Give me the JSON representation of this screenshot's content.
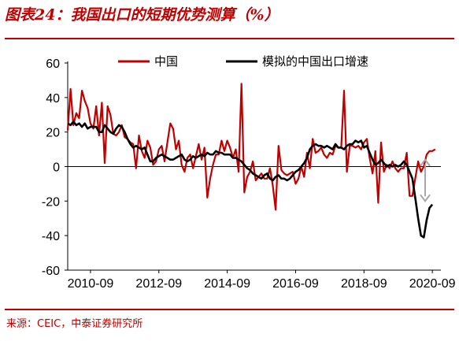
{
  "header": {
    "title": "图表24：我国出口的短期优势测算（%）"
  },
  "footer": {
    "source": "来源：CEIC，中泰证券研究所"
  },
  "colors": {
    "brand": "#c00000",
    "china": "#c00000",
    "model": "#000000",
    "arrow": "#a6a6a6"
  },
  "chart_data": {
    "type": "line",
    "title": "",
    "xlabel": "",
    "ylabel": "",
    "ylim": [
      -60,
      60
    ],
    "yticks": [
      -60,
      -40,
      -20,
      0,
      20,
      40,
      60
    ],
    "xlim": [
      "2010-01",
      "2020-12"
    ],
    "xticks": [
      "2010-09",
      "2012-09",
      "2014-09",
      "2016-09",
      "2018-09",
      "2020-09"
    ],
    "legend": {
      "placement": "top",
      "entries": [
        "中国",
        "模拟的中国出口增速"
      ]
    },
    "annotation": "double-headed arrow at right, spanning the zero line to about -20",
    "series": [
      {
        "name": "中国",
        "color": "#c00000",
        "points": [
          [
            "2010-01",
            21
          ],
          [
            "2010-02",
            45
          ],
          [
            "2010-03",
            24
          ],
          [
            "2010-04",
            31
          ],
          [
            "2010-05",
            28
          ],
          [
            "2010-06",
            44
          ],
          [
            "2010-07",
            38
          ],
          [
            "2010-08",
            34
          ],
          [
            "2010-09",
            25
          ],
          [
            "2010-10",
            22
          ],
          [
            "2010-11",
            35
          ],
          [
            "2010-12",
            18
          ],
          [
            "2011-01",
            37
          ],
          [
            "2011-02",
            2
          ],
          [
            "2011-03",
            35
          ],
          [
            "2011-04",
            30
          ],
          [
            "2011-05",
            19
          ],
          [
            "2011-06",
            18
          ],
          [
            "2011-07",
            20
          ],
          [
            "2011-08",
            24
          ],
          [
            "2011-09",
            17
          ],
          [
            "2011-10",
            16
          ],
          [
            "2011-11",
            14
          ],
          [
            "2011-12",
            13
          ],
          [
            "2012-01",
            -1
          ],
          [
            "2012-02",
            18
          ],
          [
            "2012-03",
            9
          ],
          [
            "2012-04",
            5
          ],
          [
            "2012-05",
            15
          ],
          [
            "2012-06",
            11
          ],
          [
            "2012-07",
            1
          ],
          [
            "2012-08",
            3
          ],
          [
            "2012-09",
            10
          ],
          [
            "2012-10",
            12
          ],
          [
            "2012-11",
            3
          ],
          [
            "2012-12",
            14
          ],
          [
            "2013-01",
            25
          ],
          [
            "2013-02",
            22
          ],
          [
            "2013-03",
            10
          ],
          [
            "2013-04",
            15
          ],
          [
            "2013-05",
            1
          ],
          [
            "2013-06",
            -3
          ],
          [
            "2013-07",
            5
          ],
          [
            "2013-08",
            7
          ],
          [
            "2013-09",
            -1
          ],
          [
            "2013-10",
            6
          ],
          [
            "2013-11",
            13
          ],
          [
            "2013-12",
            4
          ],
          [
            "2014-01",
            11
          ],
          [
            "2014-02",
            -18
          ],
          [
            "2014-03",
            -7
          ],
          [
            "2014-04",
            1
          ],
          [
            "2014-05",
            7
          ],
          [
            "2014-06",
            7
          ],
          [
            "2014-07",
            15
          ],
          [
            "2014-08",
            9
          ],
          [
            "2014-09",
            15
          ],
          [
            "2014-10",
            11
          ],
          [
            "2014-11",
            5
          ],
          [
            "2014-12",
            10
          ],
          [
            "2015-01",
            -3
          ],
          [
            "2015-02",
            48
          ],
          [
            "2015-03",
            -15
          ],
          [
            "2015-04",
            -6
          ],
          [
            "2015-05",
            -3
          ],
          [
            "2015-06",
            3
          ],
          [
            "2015-07",
            -8
          ],
          [
            "2015-08",
            -6
          ],
          [
            "2015-09",
            -4
          ],
          [
            "2015-10",
            -7
          ],
          [
            "2015-11",
            -7
          ],
          [
            "2015-12",
            -1
          ],
          [
            "2016-01",
            -11
          ],
          [
            "2016-02",
            -25
          ],
          [
            "2016-03",
            12
          ],
          [
            "2016-04",
            -2
          ],
          [
            "2016-05",
            -4
          ],
          [
            "2016-06",
            -5
          ],
          [
            "2016-07",
            -4
          ],
          [
            "2016-08",
            -3
          ],
          [
            "2016-09",
            -10
          ],
          [
            "2016-10",
            -7
          ],
          [
            "2016-11",
            0
          ],
          [
            "2016-12",
            -6
          ],
          [
            "2017-01",
            8
          ],
          [
            "2017-02",
            -1
          ],
          [
            "2017-03",
            16
          ],
          [
            "2017-04",
            8
          ],
          [
            "2017-05",
            9
          ],
          [
            "2017-06",
            11
          ],
          [
            "2017-07",
            7
          ],
          [
            "2017-08",
            5
          ],
          [
            "2017-09",
            8
          ],
          [
            "2017-10",
            7
          ],
          [
            "2017-11",
            12
          ],
          [
            "2017-12",
            11
          ],
          [
            "2018-01",
            11
          ],
          [
            "2018-02",
            44
          ],
          [
            "2018-03",
            -3
          ],
          [
            "2018-04",
            12
          ],
          [
            "2018-05",
            12
          ],
          [
            "2018-06",
            11
          ],
          [
            "2018-07",
            12
          ],
          [
            "2018-08",
            10
          ],
          [
            "2018-09",
            14
          ],
          [
            "2018-10",
            16
          ],
          [
            "2018-11",
            5
          ],
          [
            "2018-12",
            -4
          ],
          [
            "2019-01",
            9
          ],
          [
            "2019-02",
            -21
          ],
          [
            "2019-03",
            14
          ],
          [
            "2019-04",
            -3
          ],
          [
            "2019-05",
            1
          ],
          [
            "2019-06",
            -1
          ],
          [
            "2019-07",
            3
          ],
          [
            "2019-08",
            -1
          ],
          [
            "2019-09",
            -3
          ],
          [
            "2019-10",
            -1
          ],
          [
            "2019-11",
            -1
          ],
          [
            "2019-12",
            8
          ],
          [
            "2020-01",
            -17
          ],
          [
            "2020-02",
            -17
          ],
          [
            "2020-03",
            -7
          ],
          [
            "2020-04",
            3
          ],
          [
            "2020-05",
            -3
          ],
          [
            "2020-06",
            0
          ],
          [
            "2020-07",
            7
          ],
          [
            "2020-08",
            9
          ],
          [
            "2020-09",
            9
          ],
          [
            "2020-10",
            10
          ]
        ]
      },
      {
        "name": "模拟的中国出口增速",
        "color": "#000000",
        "points": [
          [
            "2010-01",
            25
          ],
          [
            "2010-02",
            24
          ],
          [
            "2010-03",
            26
          ],
          [
            "2010-04",
            24
          ],
          [
            "2010-05",
            25
          ],
          [
            "2010-06",
            23
          ],
          [
            "2010-07",
            25
          ],
          [
            "2010-08",
            22
          ],
          [
            "2010-09",
            23
          ],
          [
            "2010-10",
            23
          ],
          [
            "2010-11",
            23
          ],
          [
            "2010-12",
            20
          ],
          [
            "2011-01",
            20
          ],
          [
            "2011-02",
            24
          ],
          [
            "2011-03",
            22
          ],
          [
            "2011-04",
            20
          ],
          [
            "2011-05",
            19
          ],
          [
            "2011-06",
            22
          ],
          [
            "2011-07",
            24
          ],
          [
            "2011-08",
            23
          ],
          [
            "2011-09",
            20
          ],
          [
            "2011-10",
            16
          ],
          [
            "2011-11",
            13
          ],
          [
            "2011-12",
            11
          ],
          [
            "2012-01",
            12
          ],
          [
            "2012-02",
            11
          ],
          [
            "2012-03",
            10
          ],
          [
            "2012-04",
            11
          ],
          [
            "2012-05",
            7
          ],
          [
            "2012-06",
            3
          ],
          [
            "2012-07",
            3
          ],
          [
            "2012-08",
            5
          ],
          [
            "2012-09",
            6
          ],
          [
            "2012-10",
            7
          ],
          [
            "2012-11",
            6
          ],
          [
            "2012-12",
            5
          ],
          [
            "2013-01",
            4
          ],
          [
            "2013-02",
            4
          ],
          [
            "2013-03",
            5
          ],
          [
            "2013-04",
            6
          ],
          [
            "2013-05",
            7
          ],
          [
            "2013-06",
            4
          ],
          [
            "2013-07",
            3
          ],
          [
            "2013-08",
            4
          ],
          [
            "2013-09",
            6
          ],
          [
            "2013-10",
            5
          ],
          [
            "2013-11",
            6
          ],
          [
            "2013-12",
            7
          ],
          [
            "2014-01",
            6
          ],
          [
            "2014-02",
            8
          ],
          [
            "2014-03",
            7
          ],
          [
            "2014-04",
            7
          ],
          [
            "2014-05",
            9
          ],
          [
            "2014-06",
            8
          ],
          [
            "2014-07",
            8
          ],
          [
            "2014-08",
            7
          ],
          [
            "2014-09",
            7
          ],
          [
            "2014-10",
            7
          ],
          [
            "2014-11",
            5
          ],
          [
            "2014-12",
            5
          ],
          [
            "2015-01",
            4
          ],
          [
            "2015-02",
            3
          ],
          [
            "2015-03",
            1
          ],
          [
            "2015-04",
            -1
          ],
          [
            "2015-05",
            -2
          ],
          [
            "2015-06",
            -4
          ],
          [
            "2015-07",
            -5
          ],
          [
            "2015-08",
            -6
          ],
          [
            "2015-09",
            -7
          ],
          [
            "2015-10",
            -5
          ],
          [
            "2015-11",
            -4
          ],
          [
            "2015-12",
            -7
          ],
          [
            "2016-01",
            -8
          ],
          [
            "2016-02",
            -6
          ],
          [
            "2016-03",
            -5
          ],
          [
            "2016-04",
            -7
          ],
          [
            "2016-05",
            -7
          ],
          [
            "2016-06",
            -8
          ],
          [
            "2016-07",
            -7
          ],
          [
            "2016-08",
            -5
          ],
          [
            "2016-09",
            -3
          ],
          [
            "2016-10",
            -2
          ],
          [
            "2016-11",
            0
          ],
          [
            "2016-12",
            2
          ],
          [
            "2017-01",
            5
          ],
          [
            "2017-02",
            10
          ],
          [
            "2017-03",
            12
          ],
          [
            "2017-04",
            13
          ],
          [
            "2017-05",
            12
          ],
          [
            "2017-06",
            12
          ],
          [
            "2017-07",
            11
          ],
          [
            "2017-08",
            12
          ],
          [
            "2017-09",
            11
          ],
          [
            "2017-10",
            10
          ],
          [
            "2017-11",
            13
          ],
          [
            "2017-12",
            11
          ],
          [
            "2018-01",
            11
          ],
          [
            "2018-02",
            10
          ],
          [
            "2018-03",
            12
          ],
          [
            "2018-04",
            13
          ],
          [
            "2018-05",
            13
          ],
          [
            "2018-06",
            15
          ],
          [
            "2018-07",
            14
          ],
          [
            "2018-08",
            15
          ],
          [
            "2018-09",
            11
          ],
          [
            "2018-10",
            12
          ],
          [
            "2018-11",
            8
          ],
          [
            "2018-12",
            4
          ],
          [
            "2019-01",
            1
          ],
          [
            "2019-02",
            2
          ],
          [
            "2019-03",
            4
          ],
          [
            "2019-04",
            2
          ],
          [
            "2019-05",
            0
          ],
          [
            "2019-06",
            1
          ],
          [
            "2019-07",
            0
          ],
          [
            "2019-08",
            1
          ],
          [
            "2019-09",
            0
          ],
          [
            "2019-10",
            1
          ],
          [
            "2019-11",
            3
          ],
          [
            "2019-12",
            1
          ],
          [
            "2020-01",
            -3
          ],
          [
            "2020-02",
            -7
          ],
          [
            "2020-03",
            -18
          ],
          [
            "2020-04",
            -30
          ],
          [
            "2020-05",
            -40
          ],
          [
            "2020-06",
            -41
          ],
          [
            "2020-07",
            -31
          ],
          [
            "2020-08",
            -24
          ],
          [
            "2020-09",
            -22
          ]
        ]
      }
    ]
  }
}
